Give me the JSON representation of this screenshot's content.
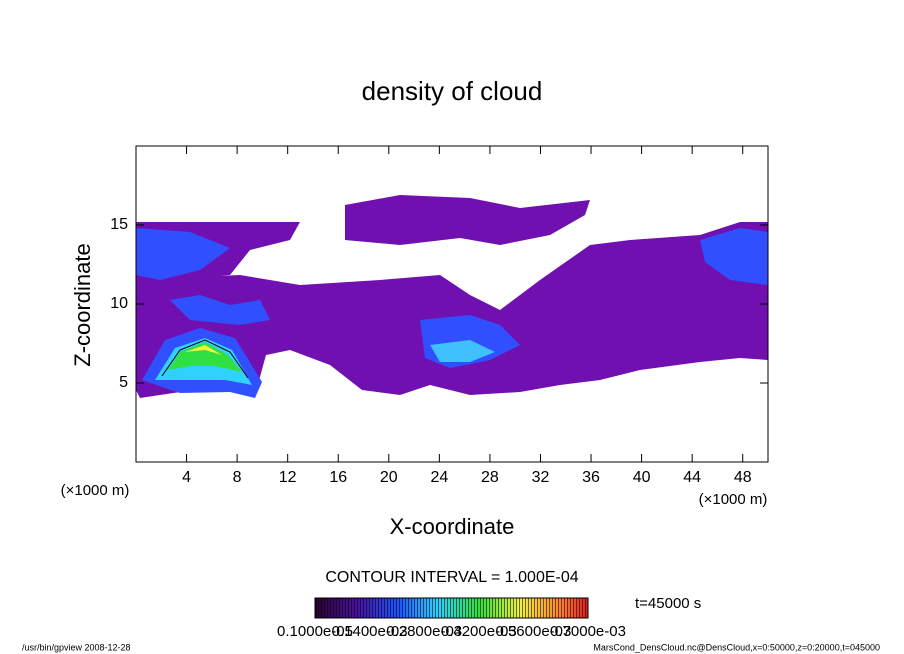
{
  "chart_data": {
    "type": "contour",
    "title": "density of cloud",
    "x_label": "X-coordinate",
    "y_label": "Z-coordinate",
    "x_unit": "(×1000 m)",
    "y_unit": "(×1000 m)",
    "xlim": [
      0,
      50
    ],
    "ylim": [
      0,
      20
    ],
    "xticks": [
      4,
      8,
      12,
      16,
      20,
      24,
      28,
      32,
      36,
      40,
      44,
      48
    ],
    "yticks": [
      5,
      10,
      15
    ],
    "contour_interval": "CONTOUR INTERVAL = 1.000E-04",
    "time": "t=45000 s",
    "colorbar_labels": [
      "0.1000e-05",
      "0.1400e-03",
      "0.2800e-03",
      "0.4200e-03",
      "0.5600e-03",
      "0.7000e-03"
    ]
  },
  "footer": {
    "left": "/usr/bin/gpview   2008-12-28",
    "right": "MarsCond_DensCloud.nc@DensCloud,x=0:50000,z=0:20000,t=045000"
  }
}
